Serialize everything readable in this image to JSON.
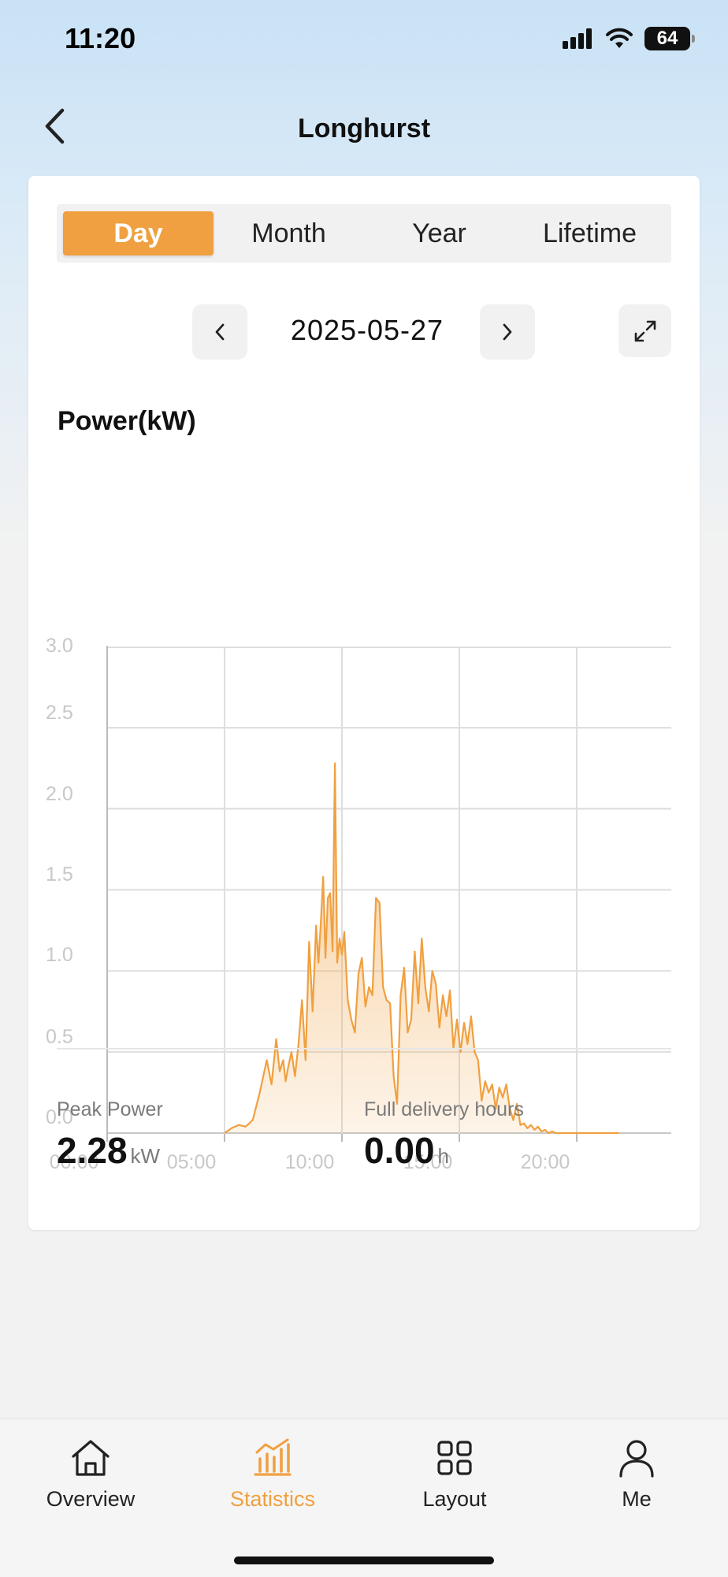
{
  "status_bar": {
    "time": "11:20",
    "battery": "64"
  },
  "header": {
    "title": "Longhurst",
    "back_icon": "chevron-left-icon"
  },
  "tabs": [
    {
      "label": "Day",
      "active": true
    },
    {
      "label": "Month",
      "active": false
    },
    {
      "label": "Year",
      "active": false
    },
    {
      "label": "Lifetime",
      "active": false
    }
  ],
  "date_nav": {
    "date": "2025-05-27",
    "prev_icon": "chevron-left-icon",
    "next_icon": "chevron-right-icon",
    "expand_icon": "expand-icon"
  },
  "chart_data": {
    "type": "area",
    "title": "Power(kW)",
    "y_ticks": [
      "0.0",
      "0.5",
      "1.0",
      "1.5",
      "2.0",
      "2.5",
      "3.0"
    ],
    "x_ticks": [
      "00:00",
      "05:00",
      "10:00",
      "15:00",
      "20:00"
    ],
    "ylim": [
      0,
      3.0
    ],
    "xlim_hours": [
      0,
      24
    ],
    "grid": true,
    "color": "#f0a040",
    "series": [
      {
        "x": [
          5.0,
          5.3,
          5.6,
          5.9,
          6.2,
          6.5,
          6.8,
          7.0,
          7.2,
          7.35,
          7.5,
          7.6,
          7.7,
          7.85,
          8.0,
          8.15,
          8.3,
          8.45,
          8.6,
          8.75,
          8.9,
          9.0,
          9.1,
          9.2,
          9.3,
          9.4,
          9.5,
          9.6,
          9.7,
          9.8,
          9.9,
          10.0,
          10.1,
          10.25,
          10.4,
          10.55,
          10.7,
          10.85,
          11.0,
          11.15,
          11.3,
          11.45,
          11.6,
          11.75,
          11.9,
          12.05,
          12.2,
          12.35,
          12.5,
          12.65,
          12.8,
          12.95,
          13.1,
          13.25,
          13.4,
          13.55,
          13.7,
          13.85,
          14.0,
          14.15,
          14.3,
          14.45,
          14.6,
          14.75,
          14.9,
          15.05,
          15.2,
          15.35,
          15.5,
          15.65,
          15.8,
          15.95,
          16.1,
          16.25,
          16.4,
          16.55,
          16.7,
          16.85,
          17.0,
          17.15,
          17.3,
          17.45,
          17.6,
          17.75,
          17.9,
          18.05,
          18.2,
          18.35,
          18.5,
          18.65,
          18.8,
          18.95,
          19.1,
          19.3,
          19.5,
          19.7,
          19.9,
          20.1,
          20.3,
          20.6,
          20.9,
          21.2,
          21.5,
          21.8
        ],
        "values": [
          0.0,
          0.03,
          0.05,
          0.04,
          0.08,
          0.25,
          0.45,
          0.3,
          0.58,
          0.38,
          0.45,
          0.32,
          0.4,
          0.5,
          0.35,
          0.55,
          0.82,
          0.45,
          1.18,
          0.75,
          1.28,
          1.05,
          1.3,
          1.58,
          1.08,
          1.45,
          1.48,
          1.12,
          2.28,
          1.05,
          1.2,
          1.1,
          1.24,
          0.82,
          0.7,
          0.62,
          0.98,
          1.08,
          0.78,
          0.9,
          0.85,
          1.45,
          1.42,
          0.9,
          0.82,
          0.8,
          0.35,
          0.18,
          0.85,
          1.02,
          0.62,
          0.7,
          1.12,
          0.8,
          1.2,
          0.9,
          0.75,
          1.0,
          0.92,
          0.65,
          0.85,
          0.72,
          0.88,
          0.52,
          0.7,
          0.5,
          0.68,
          0.55,
          0.72,
          0.5,
          0.45,
          0.2,
          0.32,
          0.25,
          0.3,
          0.15,
          0.28,
          0.22,
          0.3,
          0.15,
          0.08,
          0.18,
          0.05,
          0.06,
          0.03,
          0.05,
          0.02,
          0.04,
          0.01,
          0.02,
          0.0,
          0.01,
          0.0,
          0.0,
          0.0,
          0.0,
          0.0,
          0.0,
          0.0,
          0.0,
          0.0,
          0.0,
          0.0,
          0.0
        ]
      }
    ]
  },
  "stats": {
    "peak": {
      "label": "Peak Power",
      "value": "2.28",
      "unit": "kW"
    },
    "hours": {
      "label": "Full delivery hours",
      "value": "0.00",
      "unit": "h"
    }
  },
  "bottom_nav": [
    {
      "label": "Overview",
      "icon": "home-icon",
      "active": false
    },
    {
      "label": "Statistics",
      "icon": "bar-chart-icon",
      "active": true
    },
    {
      "label": "Layout",
      "icon": "grid-icon",
      "active": false
    },
    {
      "label": "Me",
      "icon": "user-icon",
      "active": false
    }
  ],
  "colors": {
    "accent": "#f0a040"
  }
}
